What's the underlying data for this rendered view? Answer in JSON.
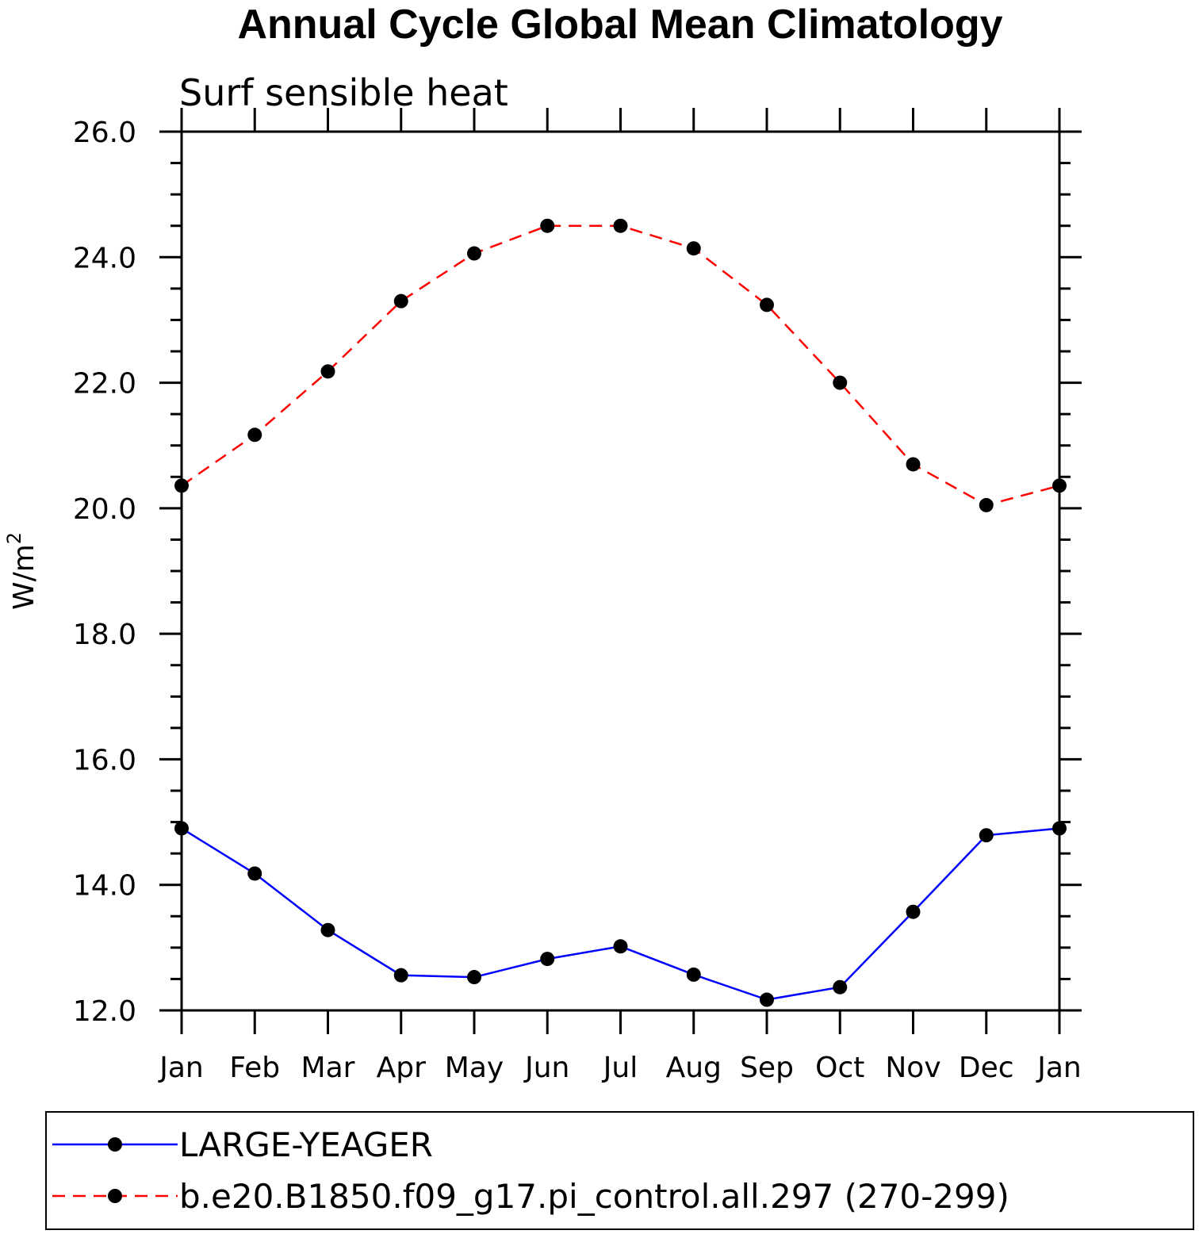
{
  "chart_data": {
    "type": "line",
    "title": "Annual Cycle Global Mean Climatology",
    "subtitle": "Surf sensible heat",
    "xlabel": "",
    "ylabel": "W/m",
    "ylabel_superscript": "2",
    "categories": [
      "Jan",
      "Feb",
      "Mar",
      "Apr",
      "May",
      "Jun",
      "Jul",
      "Aug",
      "Sep",
      "Oct",
      "Nov",
      "Dec",
      "Jan"
    ],
    "ylim": [
      12.0,
      26.0
    ],
    "y_major_ticks": [
      12.0,
      14.0,
      16.0,
      18.0,
      20.0,
      22.0,
      24.0,
      26.0
    ],
    "y_tick_labels": [
      "12.0",
      "14.0",
      "16.0",
      "18.0",
      "20.0",
      "22.0",
      "24.0",
      "26.0"
    ],
    "y_minor_step": 0.5,
    "grid": false,
    "legend_position": "bottom",
    "series": [
      {
        "name": "LARGE-YEAGER",
        "color": "#0000ff",
        "line_style": "solid",
        "marker": "filled-circle",
        "marker_color": "#000000",
        "values": [
          14.9,
          14.18,
          13.28,
          12.56,
          12.53,
          12.82,
          13.02,
          12.57,
          12.17,
          12.37,
          13.57,
          14.79,
          14.9
        ]
      },
      {
        "name": "b.e20.B1850.f09_g17.pi_control.all.297 (270-299)",
        "color": "#ff0000",
        "line_style": "dashed",
        "marker": "filled-circle",
        "marker_color": "#000000",
        "values": [
          20.36,
          21.17,
          22.18,
          23.3,
          24.06,
          24.5,
          24.5,
          24.14,
          23.24,
          22.0,
          20.7,
          20.05,
          20.36
        ]
      }
    ]
  }
}
